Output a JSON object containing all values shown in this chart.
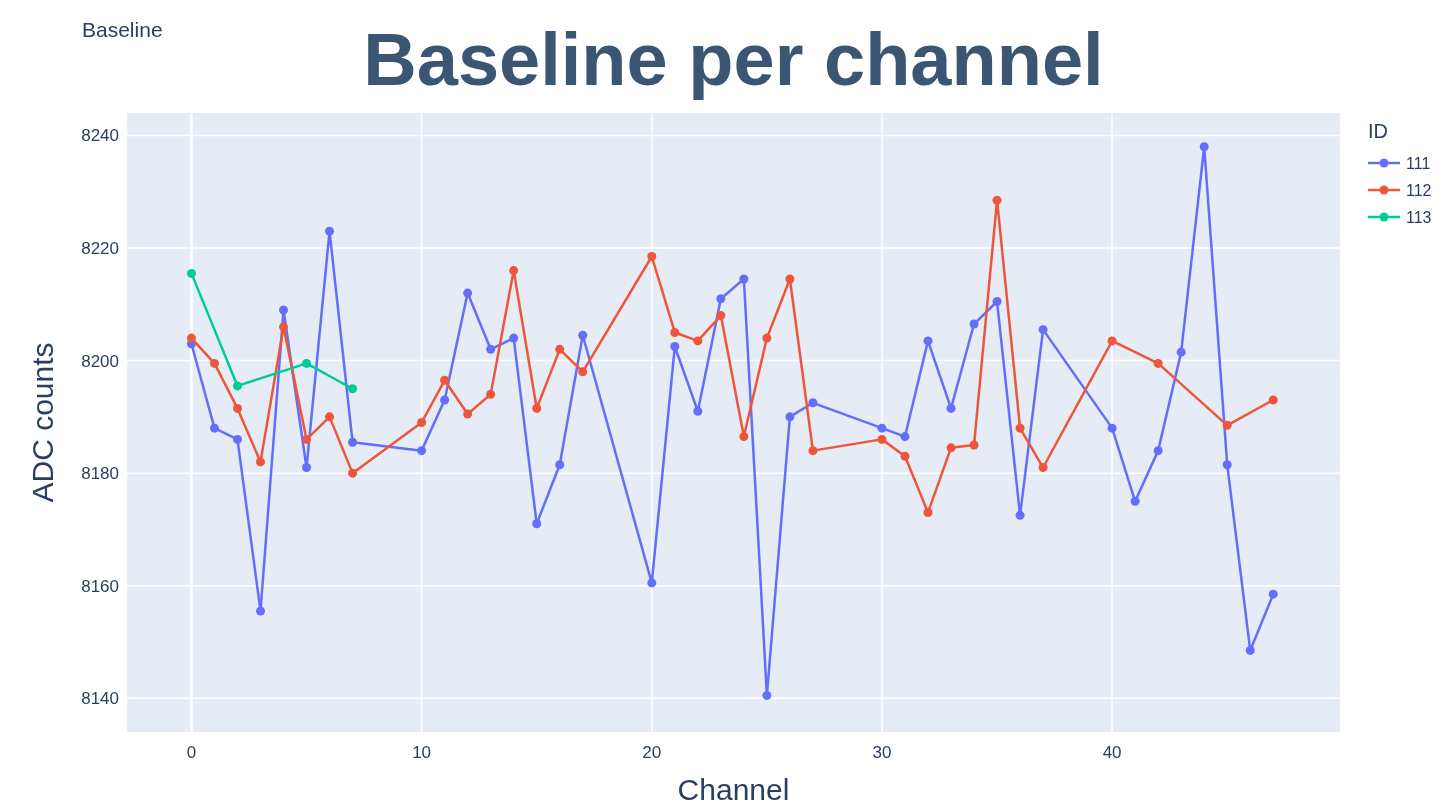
{
  "chart_data": {
    "type": "line",
    "title": "Baseline per channel",
    "annotations": [
      "Baseline"
    ],
    "xlabel": "Channel",
    "ylabel": "ADC counts",
    "legend_title": "ID",
    "legend": "top right",
    "grid": true,
    "marker": "circle",
    "line_style": "solid",
    "xlim": [
      -2.8,
      49.9
    ],
    "ylim": [
      8134,
      8244
    ],
    "xticks": [
      0,
      10,
      20,
      30,
      40
    ],
    "yticks": [
      8140,
      8160,
      8180,
      8200,
      8220,
      8240
    ],
    "series": [
      {
        "name": "111",
        "color": "#636efa",
        "x": [
          0,
          1,
          2,
          3,
          4,
          5,
          6,
          7,
          10,
          11,
          12,
          13,
          14,
          15,
          16,
          17,
          20,
          21,
          22,
          23,
          24,
          25,
          26,
          27,
          30,
          31,
          32,
          33,
          34,
          35,
          36,
          37,
          40,
          41,
          42,
          43,
          44,
          45,
          46,
          47
        ],
        "values": [
          8203,
          8188,
          8186,
          8155.5,
          8209,
          8181,
          8223,
          8185.5,
          8184,
          8193,
          8212,
          8202,
          8204,
          8171,
          8181.5,
          8204.5,
          8160.5,
          8202.5,
          8191,
          8211,
          8214.5,
          8140.5,
          8190,
          8192.5,
          8188,
          8186.5,
          8203.5,
          8191.5,
          8206.5,
          8210.5,
          8172.5,
          8205.5,
          8188,
          8175,
          8184,
          8201.5,
          8238,
          8181.5,
          8148.5,
          8158.5
        ]
      },
      {
        "name": "112",
        "color": "#ef553b",
        "x": [
          0,
          1,
          2,
          3,
          4,
          5,
          6,
          7,
          10,
          11,
          12,
          13,
          14,
          15,
          16,
          17,
          20,
          21,
          22,
          23,
          24,
          25,
          26,
          27,
          30,
          31,
          32,
          33,
          34,
          35,
          36,
          37,
          40,
          42,
          45,
          47
        ],
        "values": [
          8204,
          8199.5,
          8191.5,
          8182,
          8206,
          8186,
          8190,
          8180,
          8189,
          8196.5,
          8190.5,
          8194,
          8216,
          8191.5,
          8202,
          8198,
          8218.5,
          8205,
          8203.5,
          8208,
          8186.5,
          8204,
          8214.5,
          8184,
          8186,
          8183,
          8173,
          8184.5,
          8185,
          8228.5,
          8188,
          8181,
          8203.5,
          8199.5,
          8188.5,
          8193
        ]
      },
      {
        "name": "113",
        "color": "#00cc96",
        "x": [
          0,
          2,
          5,
          7
        ],
        "values": [
          8215.5,
          8195.5,
          8199.5,
          8195
        ]
      }
    ]
  }
}
